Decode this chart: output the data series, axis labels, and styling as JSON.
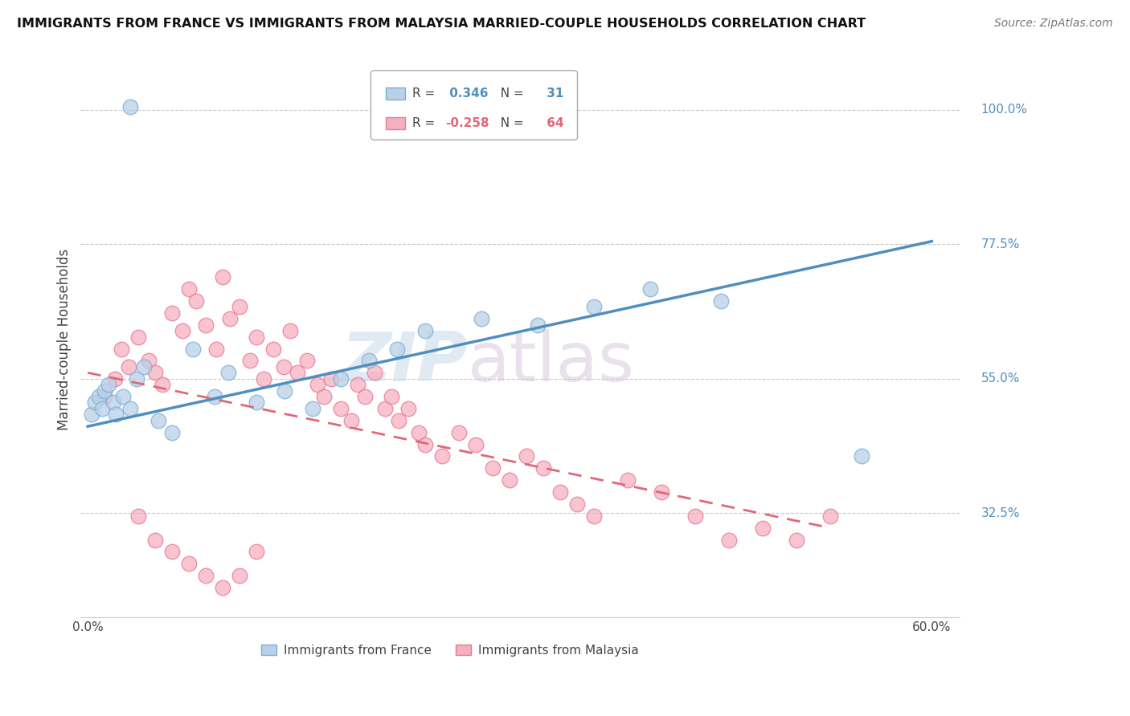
{
  "title": "IMMIGRANTS FROM FRANCE VS IMMIGRANTS FROM MALAYSIA MARRIED-COUPLE HOUSEHOLDS CORRELATION CHART",
  "source": "Source: ZipAtlas.com",
  "ylabel": "Married-couple Households",
  "france_R": 0.346,
  "france_N": 31,
  "malaysia_R": -0.258,
  "malaysia_N": 64,
  "legend_france": "Immigrants from France",
  "legend_malaysia": "Immigrants from Malaysia",
  "france_color": "#b8d0e8",
  "malaysia_color": "#f5b0c0",
  "france_edge_color": "#7aafd4",
  "malaysia_edge_color": "#e87898",
  "france_line_color": "#4f8fbf",
  "malaysia_line_color": "#e06878",
  "malaysia_line_dash": [
    6,
    4
  ],
  "xlim_pct": [
    0.0,
    60.0
  ],
  "y_ticks_pct": [
    32.5,
    55.0,
    77.5,
    100.0
  ],
  "watermark_zip": "ZIP",
  "watermark_atlas": "atlas",
  "background_color": "#ffffff",
  "grid_color": "#c8c8c8"
}
